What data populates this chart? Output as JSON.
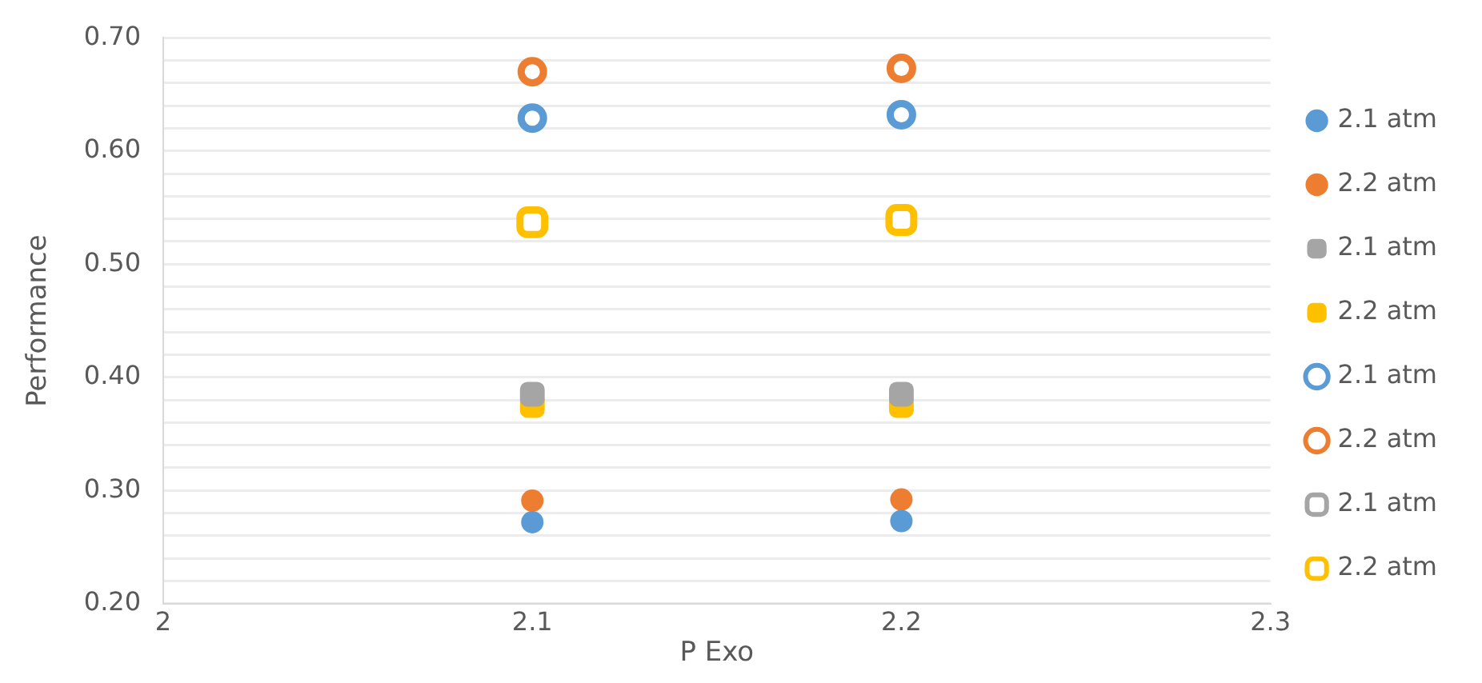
{
  "chart_data": {
    "type": "scatter",
    "xlabel": "P Exo",
    "ylabel": "Performance",
    "x": [
      2.1,
      2.2
    ],
    "xlim": [
      2,
      2.3
    ],
    "xticks": [
      2,
      2.1,
      2.2,
      2.3
    ],
    "ylim": [
      0.2,
      0.7
    ],
    "yticks": [
      {
        "value": 0.2,
        "label": "0.20"
      },
      {
        "value": 0.22,
        "label": null
      },
      {
        "value": 0.24,
        "label": null
      },
      {
        "value": 0.26,
        "label": null
      },
      {
        "value": 0.28,
        "label": null
      },
      {
        "value": 0.3,
        "label": "0.30"
      },
      {
        "value": 0.32,
        "label": null
      },
      {
        "value": 0.34,
        "label": null
      },
      {
        "value": 0.36,
        "label": null
      },
      {
        "value": 0.38,
        "label": null
      },
      {
        "value": 0.4,
        "label": "0.40"
      },
      {
        "value": 0.42,
        "label": null
      },
      {
        "value": 0.44,
        "label": null
      },
      {
        "value": 0.46,
        "label": null
      },
      {
        "value": 0.48,
        "label": null
      },
      {
        "value": 0.5,
        "label": "0.50"
      },
      {
        "value": 0.52,
        "label": null
      },
      {
        "value": 0.54,
        "label": null
      },
      {
        "value": 0.56,
        "label": null
      },
      {
        "value": 0.58,
        "label": null
      },
      {
        "value": 0.6,
        "label": "0.60"
      },
      {
        "value": 0.62,
        "label": null
      },
      {
        "value": 0.64,
        "label": null
      },
      {
        "value": 0.66,
        "label": null
      },
      {
        "value": 0.68,
        "label": null
      },
      {
        "value": 0.7,
        "label": "0.70"
      }
    ],
    "grid": "y",
    "legend": "right",
    "series": [
      {
        "name": "2.1 atm",
        "color": "#5b9bd5",
        "marker": "circle",
        "values": [
          0.272,
          0.273
        ]
      },
      {
        "name": "2.2 atm",
        "color": "#ed7d31",
        "marker": "circle",
        "values": [
          0.291,
          0.292
        ]
      },
      {
        "name": "2.1 atm",
        "color": "#a5a5a5",
        "marker": "square",
        "values": [
          0.385,
          0.385
        ]
      },
      {
        "name": "2.2 atm",
        "color": "#ffc000",
        "marker": "square",
        "values": [
          0.375,
          0.375
        ]
      },
      {
        "name": "2.1 atm",
        "color": "#5b9bd5",
        "marker": "circle",
        "values": [
          0.629,
          0.632
        ]
      },
      {
        "name": "2.2 atm",
        "color": "#ed7d31",
        "marker": "circle",
        "values": [
          0.67,
          0.673
        ]
      },
      {
        "name": "2.1 atm",
        "color": "#a5a5a5",
        "marker": "square",
        "values": [
          null,
          null
        ]
      },
      {
        "name": "2.2 atm",
        "color": "#ffc000",
        "marker": "square",
        "values": [
          0.537,
          0.539
        ]
      }
    ]
  }
}
